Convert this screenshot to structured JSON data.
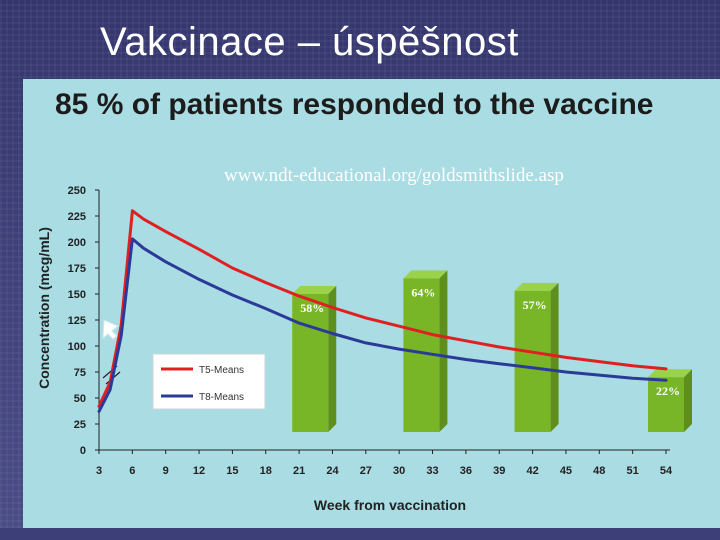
{
  "slide": {
    "title": "Vakcinace – úspěšnost"
  },
  "chart_title": "85 % of patients responded to the vaccine",
  "source": "www.ndt-educational.org/goldsmithslide.asp",
  "colors": {
    "panel": "#a9dce3",
    "series_t5": "#e02020",
    "series_t8": "#2b3a99",
    "bars": "#78b628",
    "bar_label": "#ffffff"
  },
  "chart_data": {
    "type": "line",
    "xlabel": "Week from vaccination",
    "ylabel": "Concentration (mcg/mL)",
    "xlim": [
      3,
      54
    ],
    "ylim": [
      0,
      250
    ],
    "x_ticks": [
      3,
      6,
      9,
      12,
      15,
      18,
      21,
      24,
      27,
      30,
      33,
      36,
      39,
      42,
      45,
      48,
      51,
      54
    ],
    "y_ticks": [
      0,
      25,
      50,
      75,
      100,
      125,
      150,
      175,
      200,
      225,
      250
    ],
    "legend": {
      "placement": "middle-left",
      "entries": [
        "T5-Means",
        "T8-Means"
      ]
    },
    "series": [
      {
        "name": "T5-Means",
        "color": "#e02020",
        "x": [
          3,
          4,
          5,
          6,
          7,
          9,
          12,
          15,
          18,
          21,
          24,
          27,
          30,
          33,
          36,
          39,
          42,
          45,
          48,
          51,
          54
        ],
        "y": [
          42,
          65,
          120,
          230,
          222,
          210,
          193,
          175,
          161,
          148,
          137,
          127,
          119,
          111,
          105,
          99,
          94,
          89,
          85,
          81,
          78
        ]
      },
      {
        "name": "T8-Means",
        "color": "#2b3a99",
        "x": [
          3,
          4,
          5,
          6,
          7,
          9,
          12,
          15,
          18,
          21,
          24,
          27,
          30,
          33,
          36,
          39,
          42,
          45,
          48,
          51,
          54
        ],
        "y": [
          37,
          58,
          110,
          203,
          194,
          181,
          164,
          149,
          136,
          122,
          112,
          103,
          97,
          92,
          87,
          83,
          79,
          75,
          72,
          69,
          67
        ]
      }
    ],
    "bars": [
      {
        "x": 22,
        "value": 150,
        "label": "58%"
      },
      {
        "x": 32,
        "value": 165,
        "label": "64%"
      },
      {
        "x": 42,
        "value": 153,
        "label": "57%"
      },
      {
        "x": 54,
        "value": 70,
        "label": "22%"
      }
    ]
  }
}
